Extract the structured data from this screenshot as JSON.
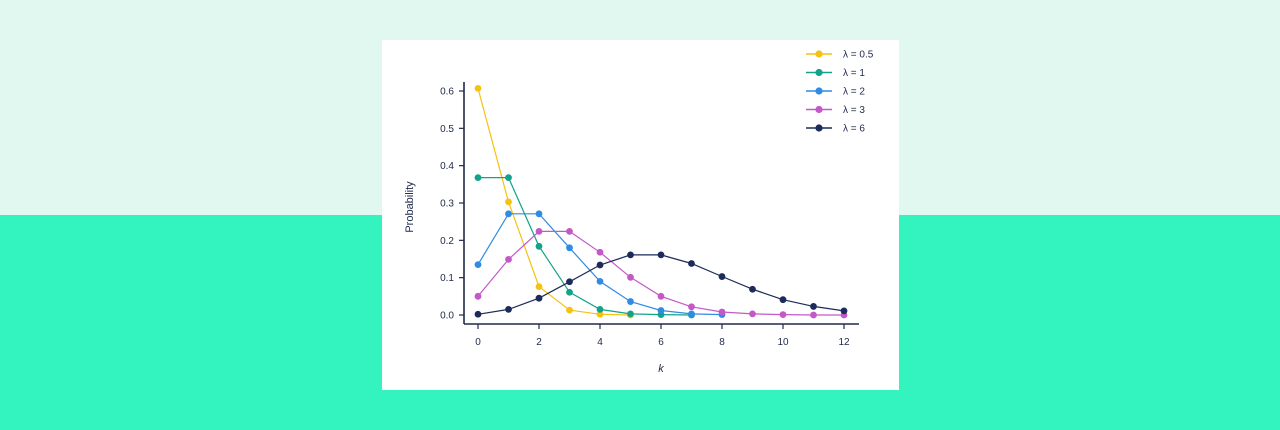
{
  "chart_data": {
    "type": "line",
    "title": "",
    "xlabel": "k",
    "ylabel": "Probability",
    "xlim": [
      0,
      12
    ],
    "ylim": [
      0,
      0.6
    ],
    "x_ticks": [
      "0",
      "2",
      "4",
      "6",
      "8",
      "10",
      "12"
    ],
    "y_ticks": [
      "0.0",
      "0.1",
      "0.2",
      "0.3",
      "0.4",
      "0.5",
      "0.6"
    ],
    "grid": false,
    "legend_position": "top-right",
    "series": [
      {
        "name": "λ = 0.5",
        "color": "#f5c211",
        "x": [
          0,
          1,
          2,
          3,
          4,
          5
        ],
        "values": [
          0.607,
          0.303,
          0.076,
          0.013,
          0.002,
          0.0
        ]
      },
      {
        "name": "λ = 1",
        "color": "#12a38a",
        "x": [
          0,
          1,
          2,
          3,
          4,
          5,
          6,
          7
        ],
        "values": [
          0.368,
          0.368,
          0.184,
          0.061,
          0.015,
          0.003,
          0.001,
          0.0
        ]
      },
      {
        "name": "λ = 2",
        "color": "#2f8be3",
        "x": [
          0,
          1,
          2,
          3,
          4,
          5,
          6,
          7,
          8
        ],
        "values": [
          0.135,
          0.271,
          0.271,
          0.18,
          0.09,
          0.036,
          0.012,
          0.003,
          0.001
        ]
      },
      {
        "name": "λ = 3",
        "color": "#c458c9",
        "x": [
          0,
          1,
          2,
          3,
          4,
          5,
          6,
          7,
          8,
          9,
          10,
          11,
          12
        ],
        "values": [
          0.05,
          0.149,
          0.224,
          0.224,
          0.168,
          0.101,
          0.05,
          0.022,
          0.008,
          0.003,
          0.001,
          0.0,
          0.0
        ]
      },
      {
        "name": "λ = 6",
        "color": "#1c2b5a",
        "x": [
          0,
          1,
          2,
          3,
          4,
          5,
          6,
          7,
          8,
          9,
          10,
          11,
          12
        ],
        "values": [
          0.002,
          0.015,
          0.045,
          0.089,
          0.134,
          0.161,
          0.161,
          0.138,
          0.103,
          0.069,
          0.041,
          0.023,
          0.011
        ]
      }
    ]
  },
  "colors": {
    "background_top": "#e1f8f0",
    "background_bottom": "#33f3bf",
    "card": "#ffffff",
    "axis": "#1f2a4a"
  }
}
